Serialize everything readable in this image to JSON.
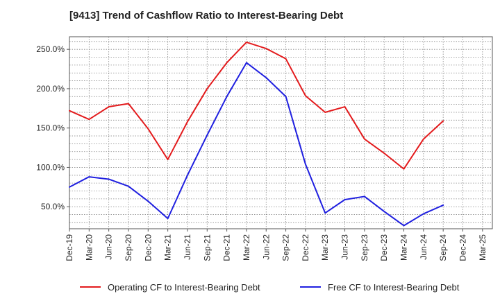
{
  "chart_title": "[9413]  Trend of Cashflow Ratio to Interest-Bearing Debt",
  "chart_data": {
    "type": "line",
    "title": "[9413]  Trend of Cashflow Ratio to Interest-Bearing Debt",
    "xlabel": "",
    "ylabel": "",
    "categories": [
      "Dec-19",
      "Mar-20",
      "Jun-20",
      "Sep-20",
      "Dec-20",
      "Mar-21",
      "Jun-21",
      "Sep-21",
      "Dec-21",
      "Mar-22",
      "Jun-22",
      "Sep-22",
      "Dec-22",
      "Mar-23",
      "Jun-23",
      "Sep-23",
      "Dec-23",
      "Mar-24",
      "Jun-24",
      "Sep-24",
      "Dec-24",
      "Mar-25"
    ],
    "y_ticks": [
      "50.0%",
      "100.0%",
      "150.0%",
      "200.0%",
      "250.0%"
    ],
    "y_tick_values": [
      50,
      100,
      150,
      200,
      250
    ],
    "ylim": [
      22,
      266
    ],
    "grid": true,
    "legend_position": "bottom",
    "series": [
      {
        "name": "Operating CF to Interest-Bearing Debt",
        "color": "#e31a1c",
        "values": [
          172,
          161,
          177,
          181,
          149,
          110,
          158,
          200,
          233,
          259,
          251,
          238,
          191,
          170,
          177,
          136,
          118,
          98,
          136,
          159,
          null,
          null
        ]
      },
      {
        "name": "Free CF to Interest-Bearing Debt",
        "color": "#1f1fe0",
        "values": [
          75,
          88,
          85,
          76,
          57,
          35,
          90,
          141,
          190,
          233,
          214,
          190,
          104,
          42,
          59,
          63,
          44,
          26,
          41,
          52,
          null,
          null
        ]
      }
    ]
  }
}
